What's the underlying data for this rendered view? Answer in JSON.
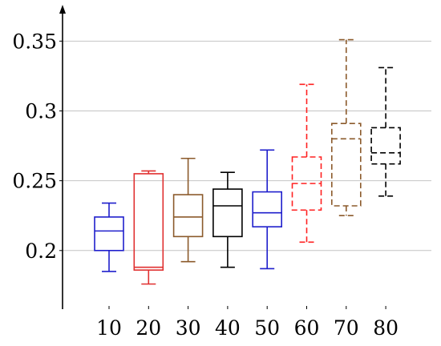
{
  "chart_data": {
    "type": "box",
    "title": "",
    "xlabel": "",
    "ylabel": "",
    "ylim": [
      0.158,
      0.376
    ],
    "grid": "horizontal",
    "y_ticks": [
      {
        "value": 0.2,
        "label": "0.2"
      },
      {
        "value": 0.25,
        "label": "0.25"
      },
      {
        "value": 0.3,
        "label": "0.3"
      },
      {
        "value": 0.35,
        "label": "0.35"
      }
    ],
    "categories": [
      "10",
      "20",
      "30",
      "40",
      "50",
      "60",
      "70",
      "80"
    ],
    "boxes": [
      {
        "category": "10",
        "min": 0.185,
        "q1": 0.2,
        "median": 0.214,
        "q3": 0.224,
        "max": 0.234,
        "color": "#1f1fcc",
        "dashed": false
      },
      {
        "category": "20",
        "min": 0.176,
        "q1": 0.186,
        "median": 0.188,
        "q3": 0.255,
        "max": 0.257,
        "color": "#e03030",
        "dashed": false
      },
      {
        "category": "30",
        "min": 0.192,
        "q1": 0.21,
        "median": 0.224,
        "q3": 0.24,
        "max": 0.266,
        "color": "#8b5a2b",
        "dashed": false
      },
      {
        "category": "40",
        "min": 0.188,
        "q1": 0.21,
        "median": 0.232,
        "q3": 0.244,
        "max": 0.256,
        "color": "#000000",
        "dashed": false
      },
      {
        "category": "50",
        "min": 0.187,
        "q1": 0.217,
        "median": 0.227,
        "q3": 0.242,
        "max": 0.272,
        "color": "#1f1fcc",
        "dashed": false
      },
      {
        "category": "60",
        "min": 0.206,
        "q1": 0.229,
        "median": 0.248,
        "q3": 0.267,
        "max": 0.319,
        "color": "#ff2020",
        "dashed": true
      },
      {
        "category": "70",
        "min": 0.225,
        "q1": 0.232,
        "median": 0.28,
        "q3": 0.291,
        "max": 0.351,
        "color": "#8b5a2b",
        "dashed": true
      },
      {
        "category": "80",
        "min": 0.239,
        "q1": 0.262,
        "median": 0.27,
        "q3": 0.288,
        "max": 0.331,
        "color": "#000000",
        "dashed": true
      }
    ]
  }
}
